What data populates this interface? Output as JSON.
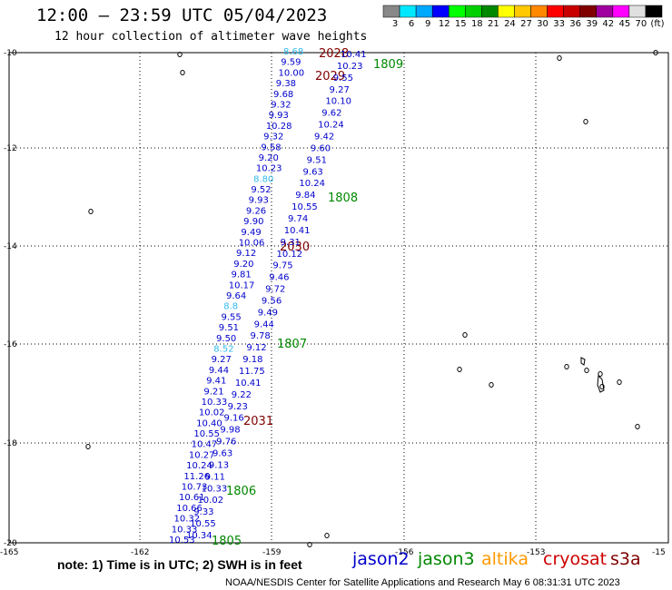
{
  "title": "12:00 – 23:59 UTC 05/04/2023",
  "subtitle": "12 hour collection of altimeter wave heights",
  "legend": {
    "colors": [
      "#888888",
      "#00e8ff",
      "#00a8ff",
      "#0000ff",
      "#00ff00",
      "#00d000",
      "#008800",
      "#ffff00",
      "#ffc800",
      "#ff8800",
      "#ff0000",
      "#c80000",
      "#800000",
      "#a000a0",
      "#ff00ff",
      "#e0e0e0",
      "#000000"
    ],
    "ticks": [
      "3",
      "6",
      "9",
      "12",
      "15",
      "18",
      "21",
      "24",
      "27",
      "30",
      "33",
      "36",
      "39",
      "42",
      "45",
      "70",
      "(ft)"
    ]
  },
  "axes": {
    "y_labels": [
      "-10",
      "-12",
      "-14",
      "-16",
      "-18",
      "-20"
    ],
    "x_labels": [
      "-165",
      "-162",
      "-159",
      "-156",
      "-153",
      "-15"
    ]
  },
  "colors": {
    "jason2": "#0000cc",
    "jason3": "#008800",
    "altika": "#ff9900",
    "cryosat": "#cc0000",
    "s3a": "#800000",
    "cyan": "#33bbee"
  },
  "track_labels": [
    {
      "text": "2028",
      "color": "s3a"
    },
    {
      "text": "2029",
      "color": "s3a"
    },
    {
      "text": "2030",
      "color": "s3a"
    },
    {
      "text": "2031",
      "color": "s3a"
    },
    {
      "text": "1809",
      "color": "jason3"
    },
    {
      "text": "1808",
      "color": "jason3"
    },
    {
      "text": "1807",
      "color": "jason3"
    },
    {
      "text": "1806",
      "color": "jason3"
    },
    {
      "text": "1805",
      "color": "jason3"
    }
  ],
  "track_a_values": [
    "8.68",
    "9.59",
    "10.00",
    "9.38",
    "9.68",
    "9.32",
    "9.93",
    "10.28",
    "9.32",
    "9.58",
    "9.20",
    "10.23",
    "8.80",
    "9.52",
    "9.93",
    "9.26",
    "9.90",
    "9.49",
    "10.06",
    "9.12",
    "9.20",
    "9.81",
    "10.17",
    "9.64",
    "8.8",
    "9.55",
    "9.51",
    "9.50",
    "8.52",
    "9.27",
    "9.44",
    "9.41",
    "9.21",
    "10.33",
    "10.02",
    "10.40",
    "10.55",
    "10.47",
    "10.27",
    "10.24",
    "11.26",
    "10.73",
    "10.61",
    "10.66",
    "10.32",
    "10.33",
    "10.53"
  ],
  "track_b_values": [
    "10.41",
    "10.23",
    "9.55",
    "9.27",
    "10.10",
    "9.62",
    "10.24",
    "9.42",
    "9.60",
    "9.51",
    "9.63",
    "10.24",
    "9.84",
    "10.55",
    "9.74",
    "10.41",
    "9.31",
    "10.12",
    "9.75",
    "9.46",
    "9.72",
    "9.56",
    "9.49",
    "9.44",
    "9.78",
    "9.12",
    "9.18",
    "11.75",
    "10.41",
    "9.22",
    "9.23",
    "9.16",
    "9.98",
    "9.76",
    "9.63",
    "9.13",
    "9.11",
    "10.33",
    "10.02",
    "9.33",
    "10.55",
    "10.34"
  ],
  "note": "note: 1) Time is in UTC; 2) SWH is in feet",
  "satellites": [
    "jason2",
    "jason3",
    "altika",
    "cryosat",
    "s3a"
  ],
  "credit": "NOAA/NESDIS Center for Satellite Applications and Research   May  6 08:31:31 UTC 2023"
}
